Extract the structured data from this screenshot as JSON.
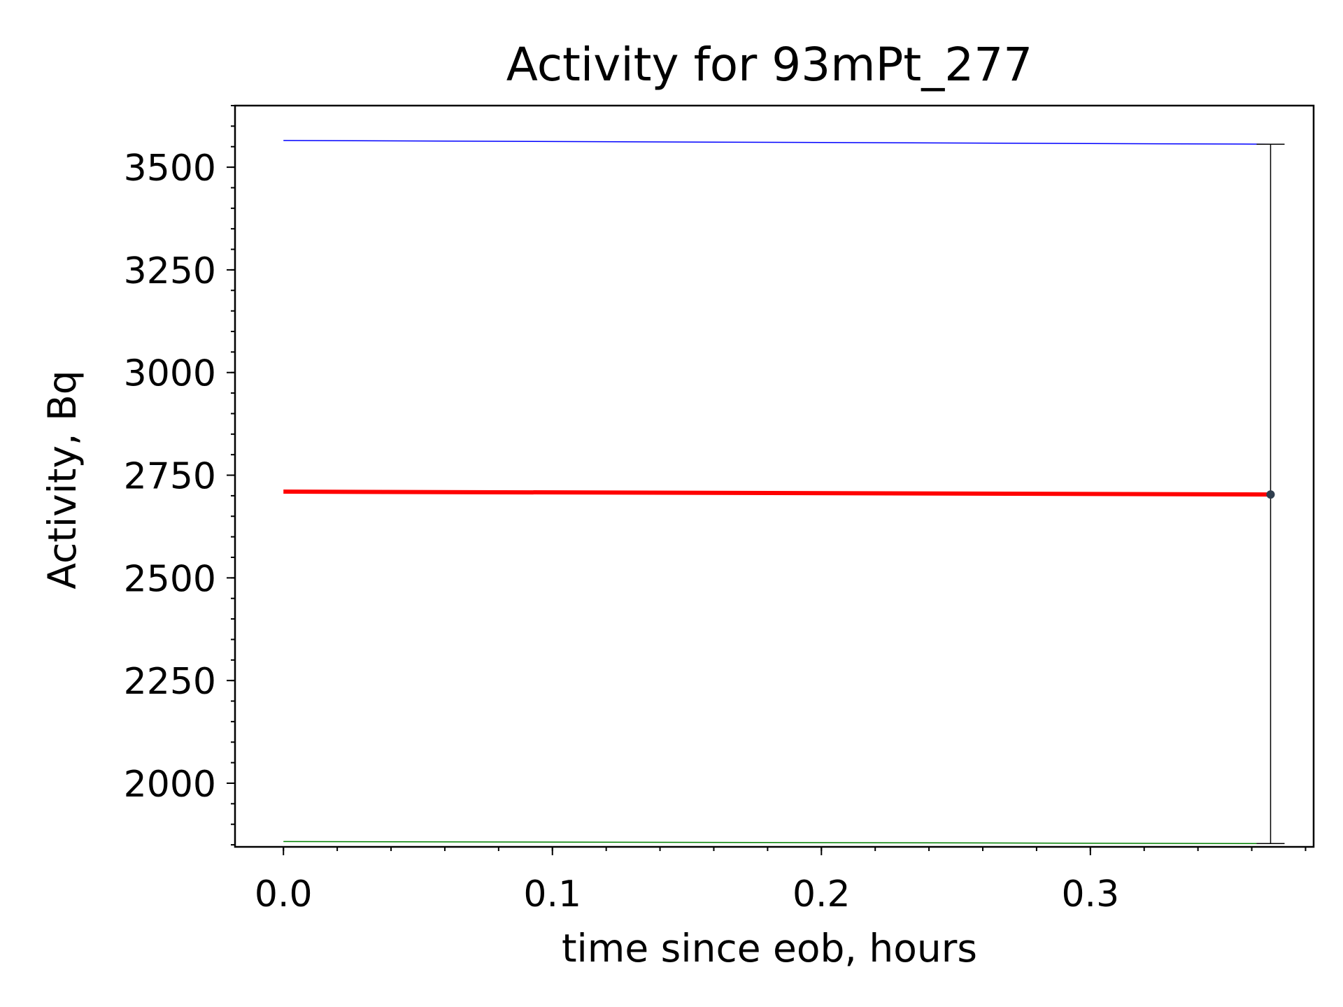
{
  "chart_data": {
    "type": "line",
    "title": "Activity for 93mPt_277",
    "xlabel": "time since eob, hours",
    "ylabel": "Activity, Bq",
    "xlim": [
      -0.018,
      0.383
    ],
    "ylim": [
      1845,
      3650
    ],
    "x_ticks": [
      0.0,
      0.1,
      0.2,
      0.3
    ],
    "x_tick_labels": [
      "0.0",
      "0.1",
      "0.2",
      "0.3"
    ],
    "y_ticks": [
      2000,
      2250,
      2500,
      2750,
      3000,
      3250,
      3500
    ],
    "y_tick_labels": [
      "2000",
      "2250",
      "2500",
      "2750",
      "3000",
      "3250",
      "3500"
    ],
    "x_minor_step": 0.02,
    "y_minor_step": 50,
    "grid": false,
    "series": [
      {
        "color": "#0000ff",
        "width": "thin",
        "x": [
          0.0,
          0.367
        ],
        "y": [
          3565,
          3556
        ]
      },
      {
        "color": "#ff0000",
        "width": "thick",
        "x": [
          0.0,
          0.367
        ],
        "y": [
          2710,
          2703
        ]
      },
      {
        "color": "#008000",
        "width": "thin",
        "x": [
          0.0,
          0.367
        ],
        "y": [
          1858,
          1853
        ]
      }
    ],
    "points": [
      {
        "x": 0.367,
        "y": 2703,
        "yerr_low": 1853,
        "yerr_high": 3556,
        "color": "#2f3e4e"
      }
    ]
  }
}
